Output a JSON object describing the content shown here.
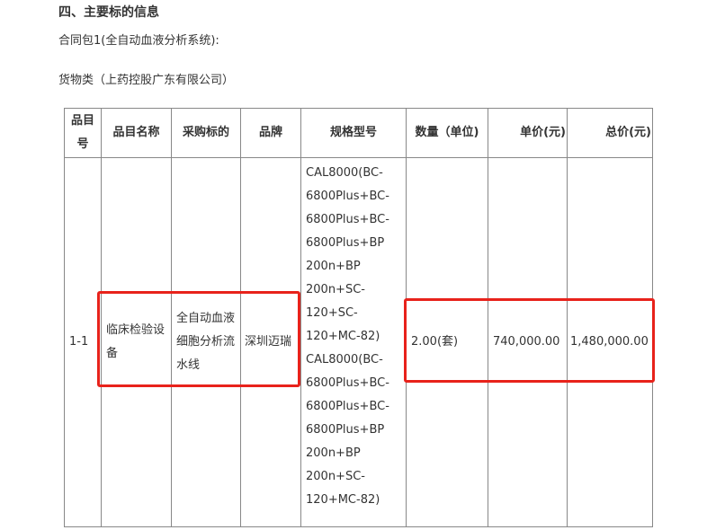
{
  "heading": "四、主要标的信息",
  "package": "合同包1(全自动血液分析系统):",
  "category": "货物类（上药控股广东有限公司）",
  "table": {
    "headers": [
      "品目号",
      "品目名称",
      "采购标的",
      "品牌",
      "规格型号",
      "数量（单位)",
      "单价(元)",
      "总价(元)"
    ],
    "rows": [
      {
        "item_no": "1-1",
        "item_name": "临床检验设备",
        "target": "全自动血液细胞分析流水线",
        "brand": "深圳迈瑞",
        "spec_lines": [
          "CAL8000(BC-",
          "6800Plus+BC-",
          "6800Plus+BC-",
          "6800Plus+BP",
          "200n+BP",
          "200n+SC-",
          "120+SC-",
          "120+MC-82)",
          "CAL8000(BC-",
          "6800Plus+BC-",
          "6800Plus+BC-",
          "6800Plus+BP",
          "200n+BP",
          "200n+SC-",
          "120+MC-82)"
        ],
        "quantity": "2.00(套)",
        "unit_price": "740,000.00",
        "total_price": "1,480,000.00"
      }
    ]
  },
  "highlight_color": "#e8221b"
}
